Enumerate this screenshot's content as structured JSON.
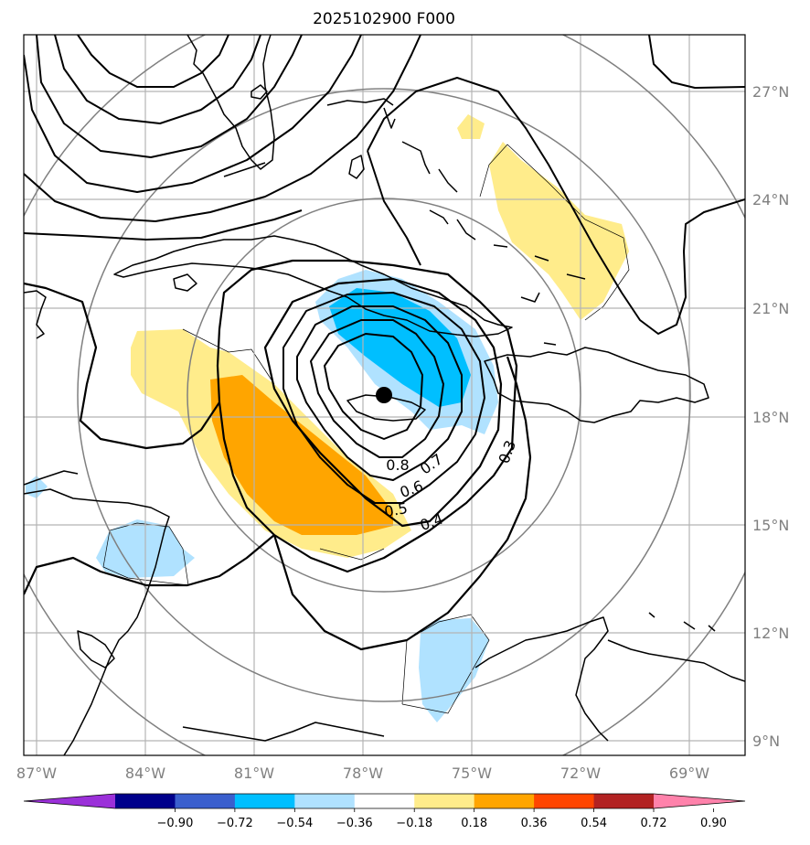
{
  "title": "2025102900 F000",
  "axes": {
    "lon_labels": [
      "87°W",
      "84°W",
      "81°W",
      "78°W",
      "75°W",
      "72°W",
      "69°W"
    ],
    "lat_labels": [
      "27°N",
      "24°N",
      "21°N",
      "18°N",
      "15°N",
      "12°N",
      "9°N"
    ]
  },
  "storm_center": {
    "lon": -77.4,
    "lat": 18.6
  },
  "contour_labels": [
    "0.8",
    "0.7",
    "0.6",
    "0.5",
    "0.4",
    "0.3"
  ],
  "colorbar": {
    "ticks": [
      "−0.90",
      "−0.72",
      "−0.54",
      "−0.36",
      "−0.18",
      "0.18",
      "0.36",
      "0.54",
      "0.72",
      "0.90"
    ],
    "colors": [
      "#9b30d9",
      "#00008b",
      "#3a5fcd",
      "#00bfff",
      "#b0e2ff",
      "#ffffff",
      "#ffec8b",
      "#ffa500",
      "#ff4500",
      "#b22222",
      "#ff82ab"
    ]
  },
  "colors": {
    "grid": "#b4b4b4",
    "range_rings": "#808080",
    "coast": "#000000"
  }
}
